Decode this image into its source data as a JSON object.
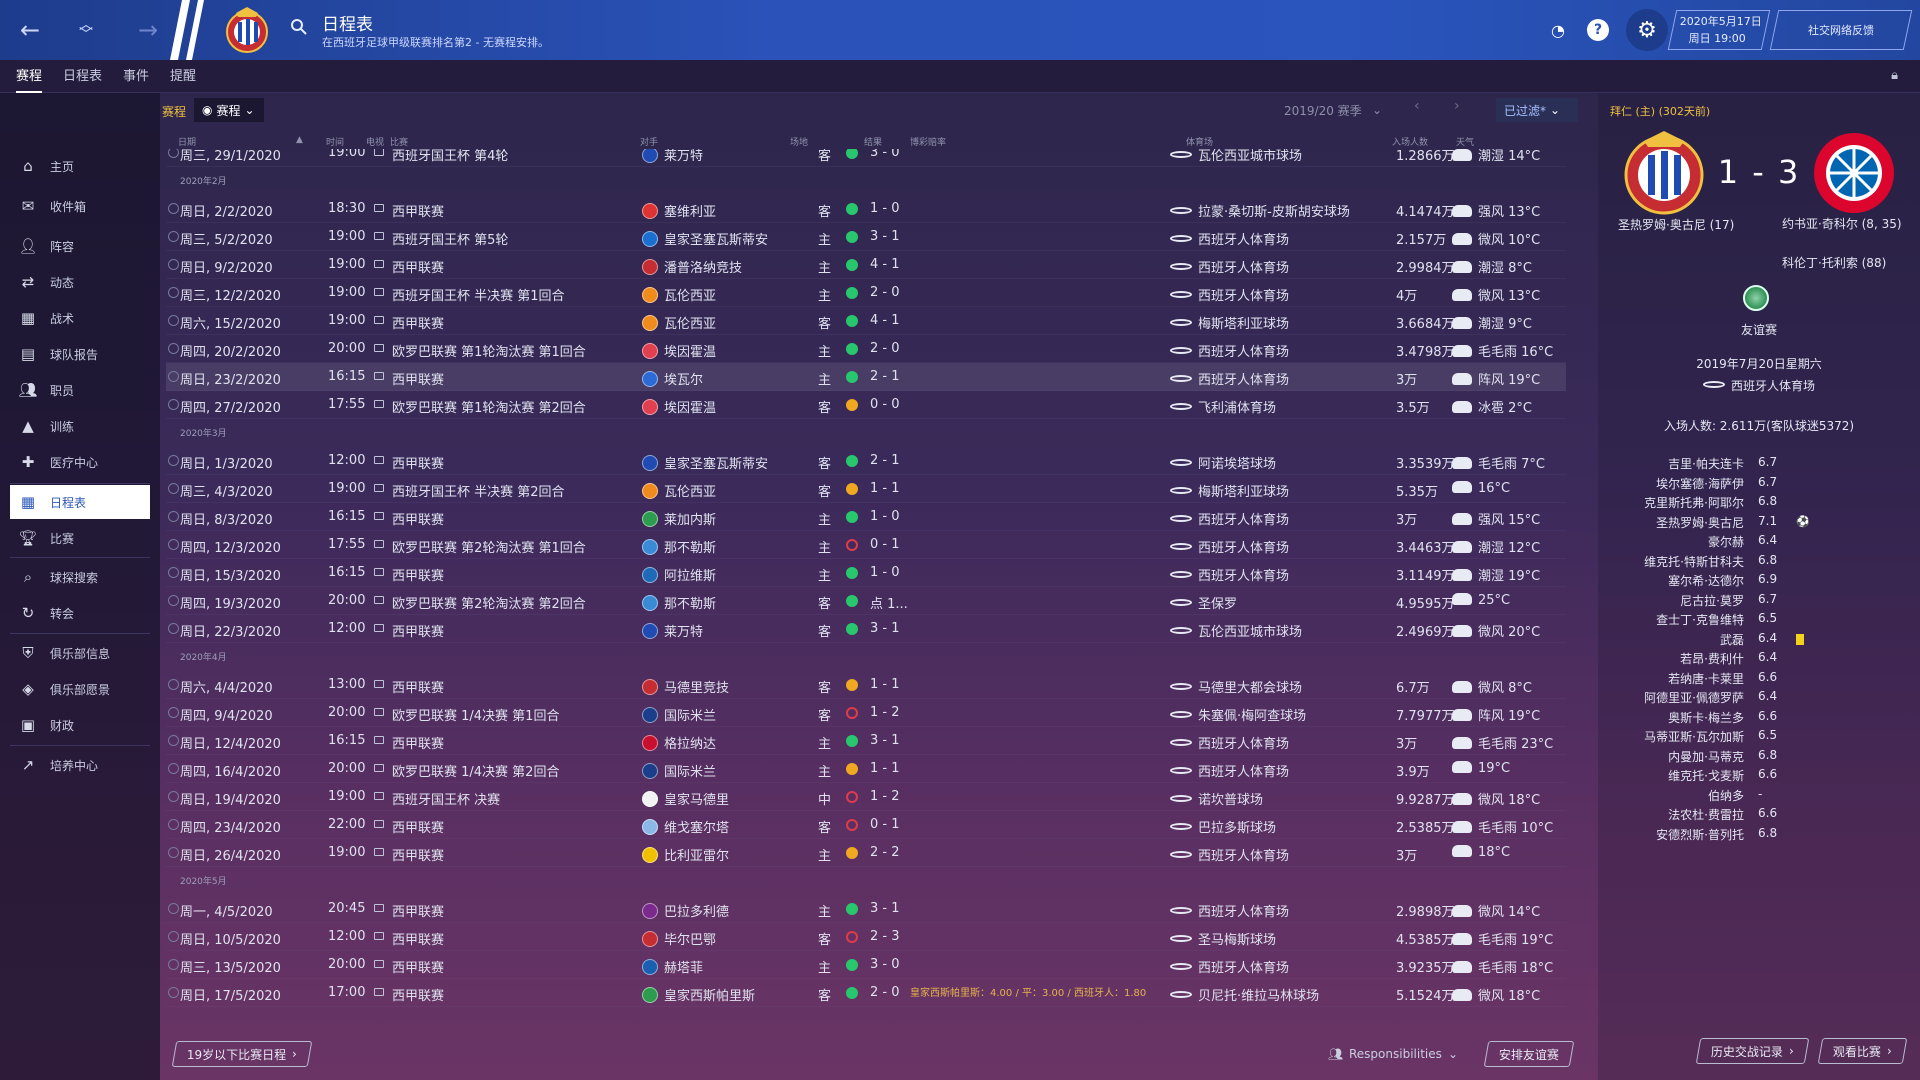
{
  "topbar": {
    "title": "日程表",
    "subtitle": "在西班牙足球甲级联赛排名第2 - 无赛程安排。",
    "date_line1": "2020年5月17日",
    "date_line2": "周日 19:00",
    "social": "社交网络反馈"
  },
  "subnav": {
    "tabs": [
      "赛程",
      "日程表",
      "事件",
      "提醒"
    ]
  },
  "sidebar": {
    "items": [
      "主页",
      "收件箱",
      "阵容",
      "动态",
      "战术",
      "球队报告",
      "职员",
      "训练",
      "医疗中心",
      "日程表",
      "比赛",
      "球探搜索",
      "转会",
      "俱乐部信息",
      "俱乐部愿景",
      "财政",
      "培养中心"
    ]
  },
  "filterbar": {
    "label": "赛程",
    "dropdown": "赛程",
    "season": "2019/20 赛季",
    "filter": "已过滤*"
  },
  "columns": {
    "date": "日期",
    "time": "时间",
    "tv": "电视",
    "comp": "比赛",
    "opp": "对手",
    "venue": "场地",
    "result": "结果",
    "odds": "博彩赔率",
    "stadium": "体育场",
    "attendance": "入场人数",
    "weather": "天气"
  },
  "months": {
    "feb": "2020年2月",
    "mar": "2020年3月",
    "apr": "2020年4月",
    "may": "2020年5月"
  },
  "matches": [
    {
      "date": "周三, 29/1/2020",
      "time": "19:00",
      "comp": "西班牙国王杯 第4轮",
      "opp": "莱万特",
      "ha": "客",
      "res": "3 - 0",
      "stadium": "瓦伦西亚城市球场",
      "att": "1.2866万",
      "weather": "潮湿 14°C"
    },
    {
      "date": "周日, 2/2/2020",
      "time": "18:30",
      "comp": "西甲联赛",
      "opp": "塞维利亚",
      "ha": "客",
      "res": "1 - 0",
      "stadium": "拉蒙·桑切斯-皮斯胡安球场",
      "att": "4.1474万",
      "weather": "强风 13°C"
    },
    {
      "date": "周三, 5/2/2020",
      "time": "19:00",
      "comp": "西班牙国王杯 第5轮",
      "opp": "皇家圣塞瓦斯蒂安",
      "ha": "主",
      "res": "3 - 1",
      "stadium": "西班牙人体育场",
      "att": "2.157万",
      "weather": "微风 10°C"
    },
    {
      "date": "周日, 9/2/2020",
      "time": "19:00",
      "comp": "西甲联赛",
      "opp": "潘普洛纳竞技",
      "ha": "主",
      "res": "4 - 1",
      "stadium": "西班牙人体育场",
      "att": "2.9984万",
      "weather": "潮湿 8°C"
    },
    {
      "date": "周三, 12/2/2020",
      "time": "19:00",
      "comp": "西班牙国王杯 半决赛 第1回合",
      "opp": "瓦伦西亚",
      "ha": "主",
      "res": "2 - 0",
      "stadium": "西班牙人体育场",
      "att": "4万",
      "weather": "微风 13°C"
    },
    {
      "date": "周六, 15/2/2020",
      "time": "19:00",
      "comp": "西甲联赛",
      "opp": "瓦伦西亚",
      "ha": "客",
      "res": "4 - 1",
      "stadium": "梅斯塔利亚球场",
      "att": "3.6684万",
      "weather": "潮湿 9°C"
    },
    {
      "date": "周四, 20/2/2020",
      "time": "20:00",
      "comp": "欧罗巴联赛 第1轮淘汰赛 第1回合",
      "opp": "埃因霍温",
      "ha": "主",
      "res": "2 - 0",
      "stadium": "西班牙人体育场",
      "att": "3.4798万",
      "weather": "毛毛雨 16°C"
    },
    {
      "date": "周日, 23/2/2020",
      "time": "16:15",
      "comp": "西甲联赛",
      "opp": "埃瓦尔",
      "ha": "主",
      "res": "2 - 1",
      "stadium": "西班牙人体育场",
      "att": "3万",
      "weather": "阵风 19°C"
    },
    {
      "date": "周四, 27/2/2020",
      "time": "17:55",
      "comp": "欧罗巴联赛 第1轮淘汰赛 第2回合",
      "opp": "埃因霍温",
      "ha": "客",
      "res": "0 - 0",
      "stadium": "飞利浦体育场",
      "att": "3.5万",
      "weather": "冰雹 2°C"
    },
    {
      "date": "周日, 1/3/2020",
      "time": "12:00",
      "comp": "西甲联赛",
      "opp": "皇家圣塞瓦斯蒂安",
      "ha": "客",
      "res": "2 - 1",
      "stadium": "阿诺埃塔球场",
      "att": "3.3539万",
      "weather": "毛毛雨 7°C"
    },
    {
      "date": "周三, 4/3/2020",
      "time": "19:00",
      "comp": "西班牙国王杯 半决赛 第2回合",
      "opp": "瓦伦西亚",
      "ha": "客",
      "res": "1 - 1",
      "stadium": "梅斯塔利亚球场",
      "att": "5.35万",
      "weather": "16°C"
    },
    {
      "date": "周日, 8/3/2020",
      "time": "16:15",
      "comp": "西甲联赛",
      "opp": "莱加内斯",
      "ha": "主",
      "res": "1 - 0",
      "stadium": "西班牙人体育场",
      "att": "3万",
      "weather": "强风 15°C"
    },
    {
      "date": "周四, 12/3/2020",
      "time": "17:55",
      "comp": "欧罗巴联赛 第2轮淘汰赛 第1回合",
      "opp": "那不勒斯",
      "ha": "主",
      "res": "0 - 1",
      "stadium": "西班牙人体育场",
      "att": "3.4463万",
      "weather": "潮湿 12°C"
    },
    {
      "date": "周日, 15/3/2020",
      "time": "16:15",
      "comp": "西甲联赛",
      "opp": "阿拉维斯",
      "ha": "主",
      "res": "1 - 0",
      "stadium": "西班牙人体育场",
      "att": "3.1149万",
      "weather": "潮湿 19°C"
    },
    {
      "date": "周四, 19/3/2020",
      "time": "20:00",
      "comp": "欧罗巴联赛 第2轮淘汰赛 第2回合",
      "opp": "那不勒斯",
      "ha": "客",
      "res": "点 1...",
      "stadium": "圣保罗",
      "att": "4.9595万",
      "weather": "25°C"
    },
    {
      "date": "周日, 22/3/2020",
      "time": "12:00",
      "comp": "西甲联赛",
      "opp": "莱万特",
      "ha": "客",
      "res": "3 - 1",
      "stadium": "瓦伦西亚城市球场",
      "att": "2.4969万",
      "weather": "微风 20°C"
    },
    {
      "date": "周六, 4/4/2020",
      "time": "13:00",
      "comp": "西甲联赛",
      "opp": "马德里竞技",
      "ha": "客",
      "res": "1 - 1",
      "stadium": "马德里大都会球场",
      "att": "6.7万",
      "weather": "微风 8°C"
    },
    {
      "date": "周四, 9/4/2020",
      "time": "20:00",
      "comp": "欧罗巴联赛 1/4决赛 第1回合",
      "opp": "国际米兰",
      "ha": "客",
      "res": "1 - 2",
      "stadium": "朱塞佩·梅阿查球场",
      "att": "7.7977万",
      "weather": "阵风 19°C"
    },
    {
      "date": "周日, 12/4/2020",
      "time": "16:15",
      "comp": "西甲联赛",
      "opp": "格拉纳达",
      "ha": "主",
      "res": "3 - 1",
      "stadium": "西班牙人体育场",
      "att": "3万",
      "weather": "毛毛雨 23°C"
    },
    {
      "date": "周四, 16/4/2020",
      "time": "20:00",
      "comp": "欧罗巴联赛 1/4决赛 第2回合",
      "opp": "国际米兰",
      "ha": "主",
      "res": "1 - 1",
      "stadium": "西班牙人体育场",
      "att": "3.9万",
      "weather": "19°C"
    },
    {
      "date": "周日, 19/4/2020",
      "time": "19:00",
      "comp": "西班牙国王杯 决赛",
      "opp": "皇家马德里",
      "ha": "中",
      "res": "1 - 2",
      "stadium": "诺坎普球场",
      "att": "9.9287万",
      "weather": "微风 18°C"
    },
    {
      "date": "周四, 23/4/2020",
      "time": "22:00",
      "comp": "西甲联赛",
      "opp": "维戈塞尔塔",
      "ha": "客",
      "res": "0 - 1",
      "stadium": "巴拉多斯球场",
      "att": "2.5385万",
      "weather": "毛毛雨 10°C"
    },
    {
      "date": "周日, 26/4/2020",
      "time": "19:00",
      "comp": "西甲联赛",
      "opp": "比利亚雷尔",
      "ha": "主",
      "res": "2 - 2",
      "stadium": "西班牙人体育场",
      "att": "3万",
      "weather": "18°C"
    },
    {
      "date": "周一, 4/5/2020",
      "time": "20:45",
      "comp": "西甲联赛",
      "opp": "巴拉多利德",
      "ha": "主",
      "res": "3 - 1",
      "stadium": "西班牙人体育场",
      "att": "2.9898万",
      "weather": "微风 14°C"
    },
    {
      "date": "周日, 10/5/2020",
      "time": "12:00",
      "comp": "西甲联赛",
      "opp": "毕尔巴鄂",
      "ha": "客",
      "res": "2 - 3",
      "stadium": "圣马梅斯球场",
      "att": "4.5385万",
      "weather": "毛毛雨 19°C"
    },
    {
      "date": "周三, 13/5/2020",
      "time": "20:00",
      "comp": "西甲联赛",
      "opp": "赫塔菲",
      "ha": "主",
      "res": "3 - 0",
      "stadium": "西班牙人体育场",
      "att": "3.9235万",
      "weather": "毛毛雨 18°C"
    },
    {
      "date": "周日, 17/5/2020",
      "time": "17:00",
      "comp": "西甲联赛",
      "opp": "皇家西斯帕里斯",
      "ha": "客",
      "res": "2 - 0",
      "stadium": "贝尼托·维拉马林球场",
      "att": "5.1524万",
      "weather": "微风 18°C"
    }
  ],
  "odds_text": "皇家西斯帕里斯：4.00 / 平：3.00 / 西班牙人：1.80",
  "bottom": {
    "u19": "19岁以下比赛日程",
    "resp": "Responsibilities",
    "friendly": "安排友谊赛"
  },
  "rpanel": {
    "header": "拜仁 (主) (302天前)",
    "score": "1 - 3",
    "home_scorer": "圣热罗姆·奥古尼 (17)",
    "away_scorer1": "约书亚·奇科尔 (8, 35)",
    "away_scorer2": "科伦丁·托利索 (88)",
    "comp": "友谊赛",
    "date": "2019年7月20日星期六",
    "venue": "西班牙人体育场",
    "attendance": "入场人数: 2.611万(客队球迷5372)",
    "players": [
      {
        "name": "吉里·帕夫连卡",
        "rating": "6.7"
      },
      {
        "name": "埃尔塞德·海萨伊",
        "rating": "6.7"
      },
      {
        "name": "克里斯托弗·阿耶尔",
        "rating": "6.8"
      },
      {
        "name": "圣热罗姆·奥古尼",
        "rating": "7.1"
      },
      {
        "name": "豪尔赫",
        "rating": "6.4"
      },
      {
        "name": "维克托·特斯甘科夫",
        "rating": "6.8"
      },
      {
        "name": "塞尔希·达德尔",
        "rating": "6.9"
      },
      {
        "name": "尼古拉·莫罗",
        "rating": "6.7"
      },
      {
        "name": "查士丁·克鲁维特",
        "rating": "6.5"
      },
      {
        "name": "武磊",
        "rating": "6.4"
      },
      {
        "name": "若昂·费利什",
        "rating": "6.4"
      },
      {
        "name": "若纳唐·卡莱里",
        "rating": "6.6"
      },
      {
        "name": "阿德里亚·佩德罗萨",
        "rating": "6.4"
      },
      {
        "name": "奥斯卡·梅兰多",
        "rating": "6.6"
      },
      {
        "name": "马蒂亚斯·瓦尔加斯",
        "rating": "6.5"
      },
      {
        "name": "内曼加·马蒂克",
        "rating": "6.8"
      },
      {
        "name": "维克托·戈麦斯",
        "rating": "6.6"
      },
      {
        "name": "伯纳多",
        "rating": "-"
      },
      {
        "name": "法农杜·费雷拉",
        "rating": "6.6"
      },
      {
        "name": "安德烈斯·普列托",
        "rating": "6.8"
      }
    ],
    "history": "历史交战记录",
    "watch": "观看比赛"
  }
}
